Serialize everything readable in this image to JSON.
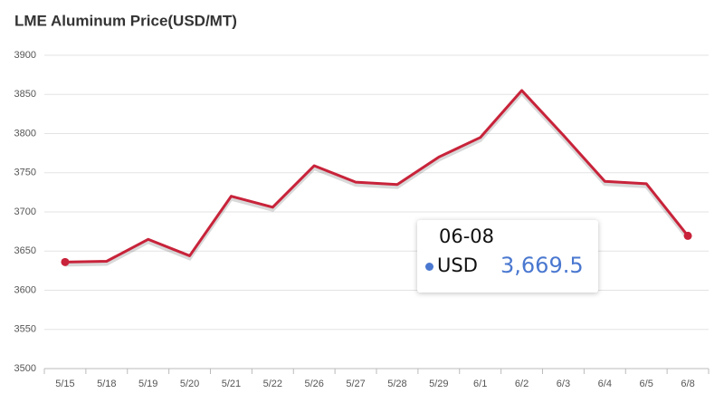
{
  "chart_data": {
    "type": "line",
    "title": "LME Aluminum Price(USD/MT)",
    "categories": [
      "5/15",
      "5/18",
      "5/19",
      "5/20",
      "5/21",
      "5/22",
      "5/26",
      "5/27",
      "5/28",
      "5/29",
      "6/1",
      "6/2",
      "6/3",
      "6/4",
      "6/5",
      "6/8"
    ],
    "series": [
      {
        "name": "USD",
        "color": "#c8233a",
        "values": [
          3636,
          3637,
          3665,
          3644,
          3720,
          3706,
          3759,
          3738,
          3735,
          3770,
          3795,
          3855,
          3798,
          3739,
          3736,
          3669.5
        ]
      }
    ],
    "ylim": [
      3500,
      3900
    ],
    "yticks": [
      3500,
      3550,
      3600,
      3650,
      3700,
      3750,
      3800,
      3850,
      3900
    ],
    "grid": true,
    "tooltip": {
      "title": "06-08",
      "value_label": "3,669.5"
    }
  }
}
